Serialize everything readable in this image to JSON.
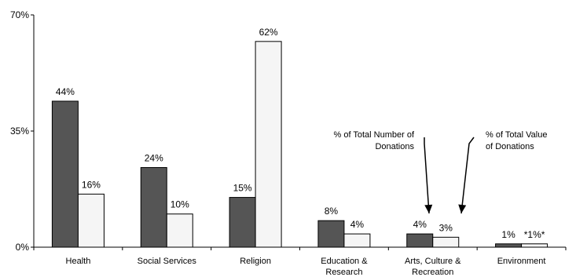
{
  "chart_data": {
    "type": "bar",
    "categories": [
      [
        "Health"
      ],
      [
        "Social Services"
      ],
      [
        "Religion"
      ],
      [
        "Education &",
        "Research"
      ],
      [
        "Arts, Culture &",
        "Recreation"
      ],
      [
        "Environment"
      ]
    ],
    "series": [
      {
        "values": [
          44,
          24,
          15,
          8,
          4,
          1
        ],
        "labels": [
          "44%",
          "24%",
          "15%",
          "8%",
          "4%",
          "1%"
        ],
        "color": "#555555"
      },
      {
        "values": [
          16,
          10,
          62,
          4,
          3,
          1
        ],
        "labels": [
          "16%",
          "10%",
          "62%",
          "4%",
          "3%",
          "*1%*"
        ],
        "color": "#f5f5f5"
      }
    ],
    "ylim": [
      0,
      70
    ],
    "yticks": [
      0,
      35,
      70
    ],
    "ytick_labels": [
      "0%",
      "35%",
      "70%"
    ],
    "grid": false,
    "legend": "none",
    "annotations": [
      {
        "lines": [
          "% of Total Number of",
          "Donations"
        ],
        "points_to_series": 0,
        "points_to_category": 4
      },
      {
        "lines": [
          "% of Total Value",
          "of Donations"
        ],
        "points_to_series": 1,
        "points_to_category": 4
      }
    ]
  }
}
